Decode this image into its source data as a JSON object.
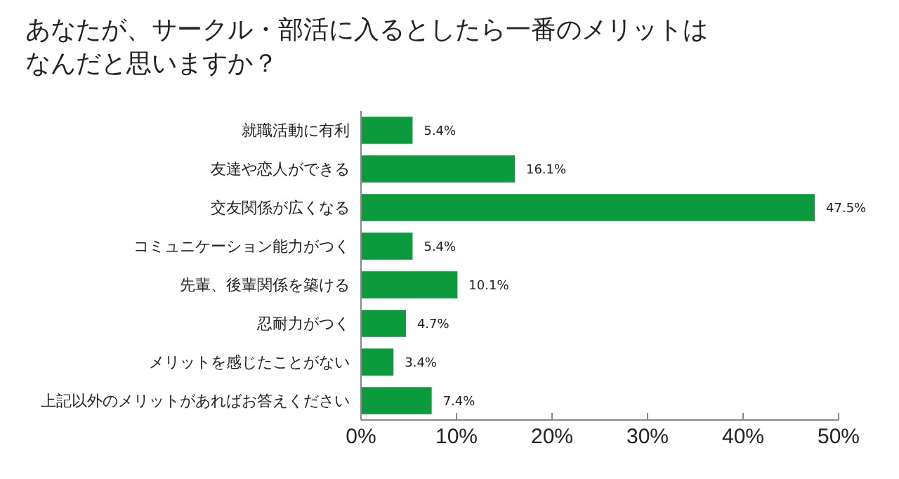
{
  "chart_data": {
    "type": "bar",
    "orientation": "horizontal",
    "title": "あなたが、サークル・部活に入るとしたら一番のメリットはなんだと思いますか？",
    "categories": [
      "就職活動に有利",
      "友達や恋人ができる",
      "交友関係が広くなる",
      "コミュニケーション能力がつく",
      "先輩、後輩関係を築ける",
      "忍耐力がつく",
      "メリットを感じたことがない",
      "上記以外のメリットがあればお答えください"
    ],
    "values": [
      5.4,
      16.1,
      47.5,
      5.4,
      10.1,
      4.7,
      3.4,
      7.4
    ],
    "value_labels": [
      "5.4%",
      "16.1%",
      "47.5%",
      "5.4%",
      "10.1%",
      "4.7%",
      "3.4%",
      "7.4%"
    ],
    "color": "#0b9a3d",
    "xlim": [
      0,
      50
    ],
    "xticks": [
      {
        "value": 0,
        "label": "0%"
      },
      {
        "value": 10,
        "label": "10%"
      },
      {
        "value": 20,
        "label": "20%"
      },
      {
        "value": 30,
        "label": "30%"
      },
      {
        "value": 40,
        "label": "40%"
      },
      {
        "value": 50,
        "label": "50%"
      }
    ],
    "grid": false
  }
}
